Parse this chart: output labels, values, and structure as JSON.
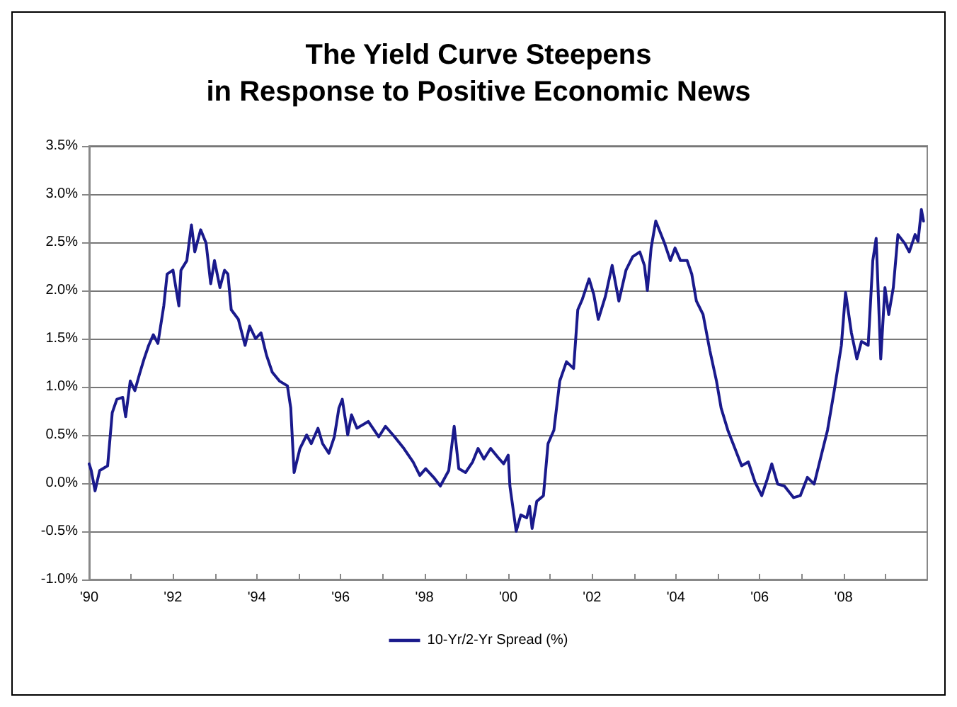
{
  "chart_data": {
    "type": "line",
    "title": "The Yield Curve Steepens\nin Response to Positive Economic News",
    "series": [
      {
        "name": "10-Yr/2-Yr Spread (%)",
        "color": "#1a1a8c",
        "x": [
          1990.0,
          1990.05,
          1990.14,
          1990.25,
          1990.44,
          1990.55,
          1990.66,
          1990.8,
          1990.87,
          1990.98,
          1991.09,
          1991.2,
          1991.31,
          1991.42,
          1991.53,
          1991.64,
          1991.78,
          1991.86,
          1992.0,
          1992.14,
          1992.19,
          1992.33,
          1992.44,
          1992.52,
          1992.66,
          1992.79,
          1992.9,
          1992.99,
          1993.12,
          1993.23,
          1993.31,
          1993.39,
          1993.56,
          1993.72,
          1993.83,
          1993.97,
          1994.1,
          1994.23,
          1994.37,
          1994.54,
          1994.73,
          1994.81,
          1994.89,
          1995.03,
          1995.19,
          1995.3,
          1995.46,
          1995.57,
          1995.72,
          1995.85,
          1995.96,
          1996.04,
          1996.17,
          1996.26,
          1996.39,
          1996.66,
          1996.91,
          1997.07,
          1997.29,
          1997.51,
          1997.73,
          1997.89,
          1998.03,
          1998.22,
          1998.38,
          1998.58,
          1998.71,
          1998.82,
          1998.98,
          1999.15,
          1999.28,
          1999.42,
          1999.58,
          1999.75,
          1999.89,
          2000.0,
          2000.04,
          2000.19,
          2000.3,
          2000.44,
          2000.51,
          2000.57,
          2000.68,
          2000.84,
          2000.95,
          2001.09,
          2001.23,
          2001.39,
          2001.56,
          2001.66,
          2001.77,
          2001.93,
          2002.04,
          2002.15,
          2002.32,
          2002.48,
          2002.64,
          2002.81,
          2002.97,
          2003.14,
          2003.25,
          2003.32,
          2003.41,
          2003.52,
          2003.73,
          2003.87,
          2003.98,
          2004.11,
          2004.27,
          2004.38,
          2004.49,
          2004.65,
          2004.81,
          2004.97,
          2005.08,
          2005.24,
          2005.41,
          2005.57,
          2005.73,
          2005.89,
          2006.05,
          2006.18,
          2006.29,
          2006.43,
          2006.59,
          2006.81,
          2006.97,
          2007.14,
          2007.3,
          2007.46,
          2007.62,
          2007.78,
          2007.95,
          2008.05,
          2008.19,
          2008.32,
          2008.43,
          2008.59,
          2008.7,
          2008.78,
          2008.89,
          2008.99,
          2009.08,
          2009.19,
          2009.3,
          2009.46,
          2009.57,
          2009.71,
          2009.78,
          2009.86,
          2009.91
        ],
        "values": [
          0.2,
          0.13,
          -0.08,
          0.13,
          0.18,
          0.73,
          0.87,
          0.89,
          0.69,
          1.06,
          0.96,
          1.13,
          1.29,
          1.43,
          1.54,
          1.45,
          1.84,
          2.17,
          2.21,
          1.84,
          2.21,
          2.31,
          2.68,
          2.4,
          2.63,
          2.49,
          2.07,
          2.31,
          2.03,
          2.21,
          2.17,
          1.8,
          1.7,
          1.43,
          1.63,
          1.5,
          1.56,
          1.33,
          1.15,
          1.06,
          1.01,
          0.78,
          0.11,
          0.36,
          0.5,
          0.41,
          0.57,
          0.41,
          0.31,
          0.48,
          0.78,
          0.87,
          0.5,
          0.71,
          0.57,
          0.64,
          0.48,
          0.59,
          0.48,
          0.36,
          0.22,
          0.08,
          0.15,
          0.06,
          -0.03,
          0.13,
          0.59,
          0.15,
          0.11,
          0.22,
          0.36,
          0.25,
          0.36,
          0.27,
          0.2,
          0.29,
          -0.03,
          -0.5,
          -0.33,
          -0.36,
          -0.24,
          -0.47,
          -0.19,
          -0.13,
          0.41,
          0.55,
          1.06,
          1.26,
          1.19,
          1.8,
          1.91,
          2.12,
          1.96,
          1.7,
          1.94,
          2.26,
          1.89,
          2.21,
          2.35,
          2.4,
          2.26,
          2.0,
          2.44,
          2.72,
          2.49,
          2.31,
          2.44,
          2.31,
          2.31,
          2.17,
          1.89,
          1.75,
          1.38,
          1.06,
          0.78,
          0.55,
          0.36,
          0.18,
          0.22,
          0.01,
          -0.13,
          0.04,
          0.2,
          -0.01,
          -0.03,
          -0.15,
          -0.13,
          0.06,
          -0.01,
          0.27,
          0.55,
          0.96,
          1.43,
          1.98,
          1.56,
          1.29,
          1.47,
          1.43,
          2.31,
          2.54,
          1.29,
          2.03,
          1.75,
          2.03,
          2.58,
          2.49,
          2.4,
          2.58,
          2.51,
          2.84,
          2.72
        ]
      }
    ],
    "xlim": [
      1990,
      2010
    ],
    "xticks": [
      {
        "value": 1990,
        "label": "'90"
      },
      {
        "value": 1991,
        "label": null
      },
      {
        "value": 1992,
        "label": "'92"
      },
      {
        "value": 1993,
        "label": null
      },
      {
        "value": 1994,
        "label": "'94"
      },
      {
        "value": 1995,
        "label": null
      },
      {
        "value": 1996,
        "label": "'96"
      },
      {
        "value": 1997,
        "label": null
      },
      {
        "value": 1998,
        "label": "'98"
      },
      {
        "value": 1999,
        "label": null
      },
      {
        "value": 2000,
        "label": "'00"
      },
      {
        "value": 2001,
        "label": null
      },
      {
        "value": 2002,
        "label": "'02"
      },
      {
        "value": 2003,
        "label": null
      },
      {
        "value": 2004,
        "label": "'04"
      },
      {
        "value": 2005,
        "label": null
      },
      {
        "value": 2006,
        "label": "'06"
      },
      {
        "value": 2007,
        "label": null
      },
      {
        "value": 2008,
        "label": "'08"
      },
      {
        "value": 2009,
        "label": null
      }
    ],
    "ylim": [
      -1.0,
      3.5
    ],
    "yticks": [
      {
        "value": -1.0,
        "label": "-1.0%"
      },
      {
        "value": -0.5,
        "label": "-0.5%"
      },
      {
        "value": 0,
        "label": "0.0%"
      },
      {
        "value": 0.5,
        "label": "0.5%"
      },
      {
        "value": 1.0,
        "label": "1.0%"
      },
      {
        "value": 1.5,
        "label": "1.5%"
      },
      {
        "value": 2.0,
        "label": "2.0%"
      },
      {
        "value": 2.5,
        "label": "2.5%"
      },
      {
        "value": 3.0,
        "label": "3.0%"
      },
      {
        "value": 3.5,
        "label": "3.5%"
      }
    ],
    "grid": "y",
    "legend": "bottom",
    "marker": "none",
    "line_style": "solid"
  }
}
